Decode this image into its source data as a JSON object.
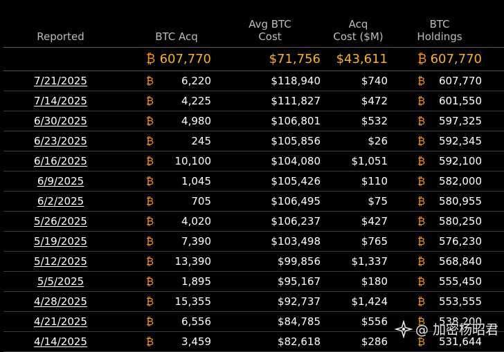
{
  "header": {
    "reported": "Reported",
    "btc_acq": "BTC Acq",
    "avg_btc_cost": "Avg BTC\nCost",
    "acq_cost": "Acq\nCost ($M)",
    "btc_holdings": "BTC\nHoldings"
  },
  "btc_symbol": "₿",
  "totals": {
    "btc_acq": "607,770",
    "avg_btc_cost": "$71,756",
    "acq_cost": "$43,611",
    "btc_holdings": "607,770"
  },
  "rows": [
    {
      "date": "7/21/2025",
      "btc_acq": "6,220",
      "avg_cost": "$118,940",
      "acq_cost": "$740",
      "holdings": "607,770"
    },
    {
      "date": "7/14/2025",
      "btc_acq": "4,225",
      "avg_cost": "$111,827",
      "acq_cost": "$472",
      "holdings": "601,550"
    },
    {
      "date": "6/30/2025",
      "btc_acq": "4,980",
      "avg_cost": "$106,801",
      "acq_cost": "$532",
      "holdings": "597,325"
    },
    {
      "date": "6/23/2025",
      "btc_acq": "245",
      "avg_cost": "$105,856",
      "acq_cost": "$26",
      "holdings": "592,345"
    },
    {
      "date": "6/16/2025",
      "btc_acq": "10,100",
      "avg_cost": "$104,080",
      "acq_cost": "$1,051",
      "holdings": "592,100"
    },
    {
      "date": "6/9/2025",
      "btc_acq": "1,045",
      "avg_cost": "$105,426",
      "acq_cost": "$110",
      "holdings": "582,000"
    },
    {
      "date": "6/2/2025",
      "btc_acq": "705",
      "avg_cost": "$106,495",
      "acq_cost": "$75",
      "holdings": "580,955"
    },
    {
      "date": "5/26/2025",
      "btc_acq": "4,020",
      "avg_cost": "$106,237",
      "acq_cost": "$427",
      "holdings": "580,250"
    },
    {
      "date": "5/19/2025",
      "btc_acq": "7,390",
      "avg_cost": "$103,498",
      "acq_cost": "$765",
      "holdings": "576,230"
    },
    {
      "date": "5/12/2025",
      "btc_acq": "13,390",
      "avg_cost": "$99,856",
      "acq_cost": "$1,337",
      "holdings": "568,840"
    },
    {
      "date": "5/5/2025",
      "btc_acq": "1,895",
      "avg_cost": "$95,167",
      "acq_cost": "$180",
      "holdings": "555,450"
    },
    {
      "date": "4/28/2025",
      "btc_acq": "15,355",
      "avg_cost": "$92,737",
      "acq_cost": "$1,424",
      "holdings": "553,555"
    },
    {
      "date": "4/21/2025",
      "btc_acq": "6,556",
      "avg_cost": "$84,785",
      "acq_cost": "$556",
      "holdings": "538,200"
    },
    {
      "date": "4/14/2025",
      "btc_acq": "3,459",
      "avg_cost": "$82,618",
      "acq_cost": "$286",
      "holdings": "531,644"
    }
  ],
  "watermark": {
    "text": "@ 加密杨昭君",
    "icon": "sparkle-logo-icon"
  },
  "colors": {
    "background": "#000000",
    "header_text": "#b7bdc3",
    "btc_orange": "#f7931a",
    "total_gold": "#f9b128"
  }
}
